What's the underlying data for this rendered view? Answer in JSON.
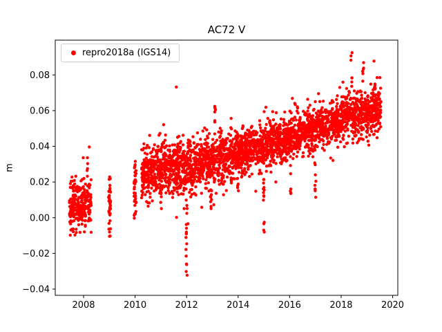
{
  "figure": {
    "title": "AC72 V",
    "ylabel": "m",
    "background": "#ffffff"
  },
  "legend": {
    "label": "repro2018a (IGS14)",
    "marker_color": "#ff0000"
  },
  "chart_data": {
    "type": "scatter",
    "title": "AC72 V",
    "xlabel": "",
    "ylabel": "m",
    "series_name": "repro2018a (IGS14)",
    "color": "#ff0000",
    "grid": false,
    "legend_position": "upper left",
    "xlim": [
      2006.9,
      2020.2
    ],
    "ylim": [
      -0.0435,
      0.0995
    ],
    "xticks": [
      2008,
      2010,
      2012,
      2014,
      2016,
      2018,
      2020
    ],
    "yticks": [
      -0.04,
      -0.02,
      0.0,
      0.02,
      0.04,
      0.06,
      0.08
    ],
    "marker_radius": 2.2,
    "seed": 42,
    "trend_segments": [
      {
        "x0": 2007.45,
        "x1": 2008.3,
        "y0": 0.006,
        "y1": 0.01,
        "noise": 0.007,
        "n": 260
      },
      {
        "x0": 2008.97,
        "x1": 2009.05,
        "y0": 0.008,
        "y1": 0.008,
        "noise": 0.008,
        "n": 40
      },
      {
        "x0": 2009.96,
        "x1": 2010.04,
        "y0": 0.014,
        "y1": 0.014,
        "noise": 0.008,
        "n": 40
      },
      {
        "x0": 2010.25,
        "x1": 2011.3,
        "y0": 0.023,
        "y1": 0.029,
        "noise": 0.007,
        "n": 330
      },
      {
        "x0": 2011.3,
        "x1": 2012.5,
        "y0": 0.028,
        "y1": 0.03,
        "noise": 0.0075,
        "n": 380
      },
      {
        "x0": 2012.5,
        "x1": 2014.0,
        "y0": 0.03,
        "y1": 0.037,
        "noise": 0.007,
        "n": 470
      },
      {
        "x0": 2014.0,
        "x1": 2016.0,
        "y0": 0.037,
        "y1": 0.045,
        "noise": 0.006,
        "n": 630
      },
      {
        "x0": 2016.0,
        "x1": 2018.0,
        "y0": 0.045,
        "y1": 0.055,
        "noise": 0.006,
        "n": 630
      },
      {
        "x0": 2018.0,
        "x1": 2019.55,
        "y0": 0.056,
        "y1": 0.061,
        "noise": 0.0062,
        "n": 500
      }
    ],
    "outlier_strips": [
      {
        "x": 2008.05,
        "ymin": -0.008,
        "ymax": 0.005,
        "n": 8
      },
      {
        "x": 2007.6,
        "ymin": -0.008,
        "ymax": 0.002,
        "n": 6
      },
      {
        "x": 2008.15,
        "ymin": 0.026,
        "ymax": 0.034,
        "n": 4
      },
      {
        "x": 2011.0,
        "ymin": 0.004,
        "ymax": 0.024,
        "n": 12
      },
      {
        "x": 2012.0,
        "ymin": -0.036,
        "ymax": 0.02,
        "n": 18
      },
      {
        "x": 2012.95,
        "ymin": 0.004,
        "ymax": 0.028,
        "n": 10
      },
      {
        "x": 2013.1,
        "ymin": 0.052,
        "ymax": 0.064,
        "n": 6
      },
      {
        "x": 2014.0,
        "ymin": 0.014,
        "ymax": 0.034,
        "n": 8
      },
      {
        "x": 2015.0,
        "ymin": -0.015,
        "ymax": 0.03,
        "n": 14
      },
      {
        "x": 2016.05,
        "ymin": 0.013,
        "ymax": 0.04,
        "n": 8
      },
      {
        "x": 2017.0,
        "ymin": 0.009,
        "ymax": 0.04,
        "n": 10
      },
      {
        "x": 2018.4,
        "ymin": 0.07,
        "ymax": 0.093,
        "n": 6
      },
      {
        "x": 2018.85,
        "ymin": 0.07,
        "ymax": 0.088,
        "n": 5
      },
      {
        "x": 2019.3,
        "ymin": 0.066,
        "ymax": 0.076,
        "n": 5
      }
    ]
  }
}
